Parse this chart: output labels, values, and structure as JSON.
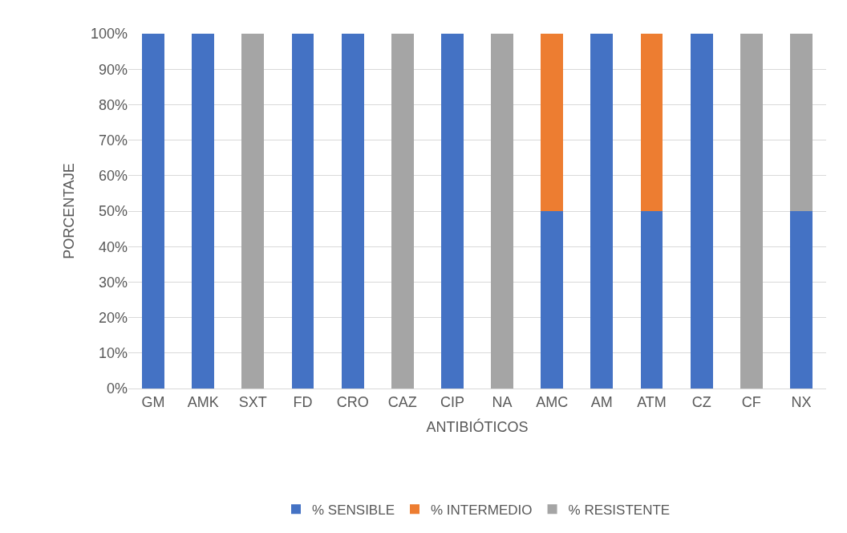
{
  "chart_data": {
    "type": "bar",
    "stacked": true,
    "xlabel": "ANTIBIÓTICOS",
    "ylabel": "PORCENTAJE",
    "categories": [
      "GM",
      "AMK",
      "SXT",
      "FD",
      "CRO",
      "CAZ",
      "CIP",
      "NA",
      "AMC",
      "AM",
      "ATM",
      "CZ",
      "CF",
      "NX"
    ],
    "series": [
      {
        "name": "% SENSIBLE",
        "color": "#4472c4",
        "values": [
          100,
          100,
          0,
          100,
          100,
          0,
          100,
          0,
          50,
          100,
          50,
          100,
          0,
          50
        ]
      },
      {
        "name": "% INTERMEDIO",
        "color": "#ed7d31",
        "values": [
          0,
          0,
          0,
          0,
          0,
          0,
          0,
          0,
          50,
          0,
          50,
          0,
          0,
          0
        ]
      },
      {
        "name": "% RESISTENTE",
        "color": "#a5a5a5",
        "values": [
          0,
          0,
          100,
          0,
          0,
          100,
          0,
          100,
          0,
          0,
          0,
          0,
          100,
          50
        ]
      }
    ],
    "ylim": [
      0,
      100
    ],
    "yticks": [
      {
        "value": 0,
        "label": "0%"
      },
      {
        "value": 10,
        "label": "10%"
      },
      {
        "value": 20,
        "label": "20%"
      },
      {
        "value": 30,
        "label": "30%"
      },
      {
        "value": 40,
        "label": "40%"
      },
      {
        "value": 50,
        "label": "50%"
      },
      {
        "value": 60,
        "label": "60%"
      },
      {
        "value": 70,
        "label": "70%"
      },
      {
        "value": 80,
        "label": "80%"
      },
      {
        "value": 90,
        "label": "90%"
      },
      {
        "value": 100,
        "label": "100%"
      }
    ],
    "grid": "y",
    "legend": "bottom"
  }
}
